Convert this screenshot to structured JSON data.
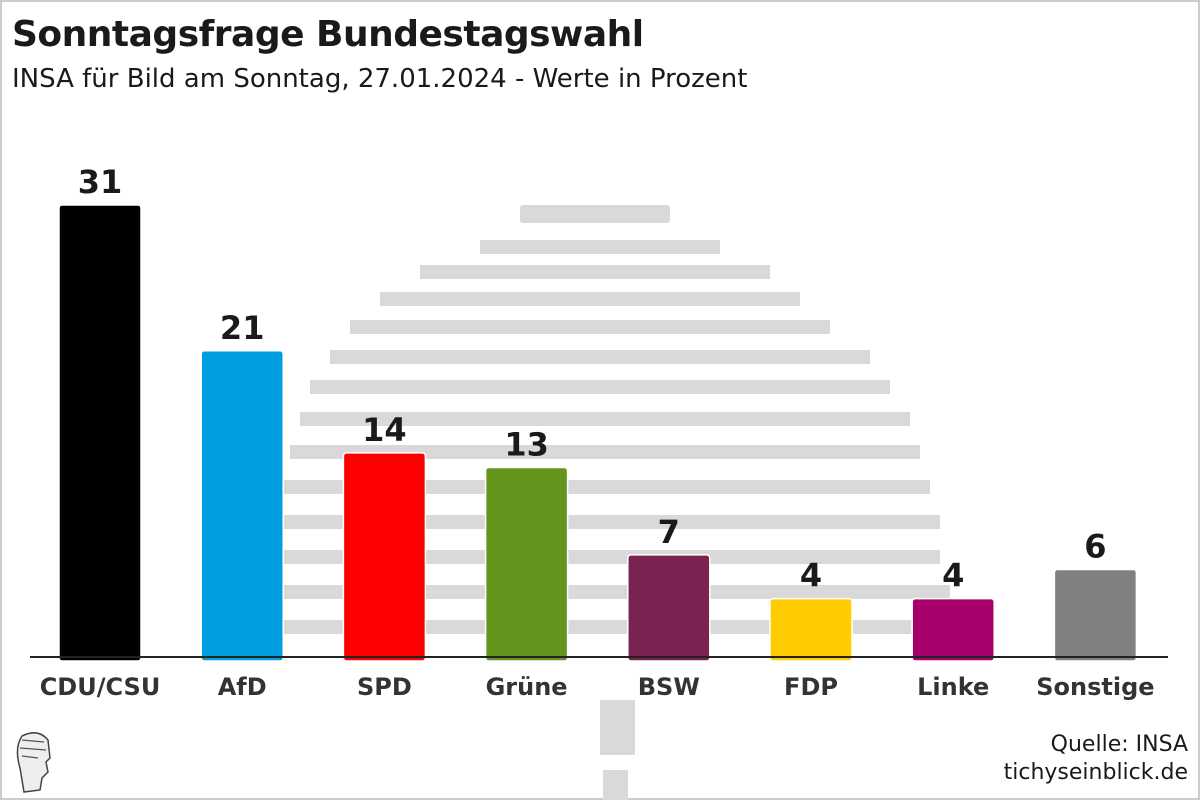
{
  "chart_data": {
    "type": "bar",
    "title": "Sonntagsfrage Bundestagswahl",
    "subtitle": "INSA für Bild am Sonntag, 27.01.2024 - Werte in Prozent",
    "categories": [
      "CDU/CSU",
      "AfD",
      "SPD",
      "Grüne",
      "BSW",
      "FDP",
      "Linke",
      "Sonstige"
    ],
    "values": [
      31,
      21,
      14,
      13,
      7,
      4,
      4,
      6
    ],
    "colors": [
      "#000000",
      "#009ee0",
      "#ff0000",
      "#64961e",
      "#7a2350",
      "#ffcc00",
      "#a8006a",
      "#808080"
    ],
    "xlabel": "",
    "ylabel": "",
    "ylim": [
      0,
      31
    ],
    "grid": false
  },
  "footer": {
    "source": "Quelle: INSA",
    "site": "tichyseinblick.de",
    "logo": "tichyseinblick"
  }
}
